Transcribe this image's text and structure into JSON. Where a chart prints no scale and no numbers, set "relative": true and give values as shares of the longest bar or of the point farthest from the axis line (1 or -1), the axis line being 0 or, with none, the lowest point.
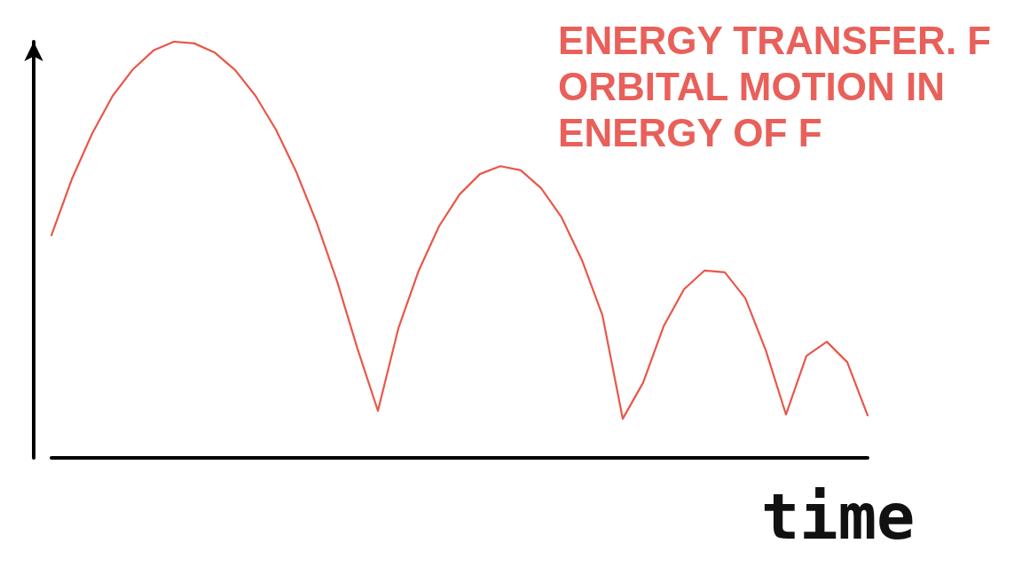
{
  "chart_data": {
    "type": "line",
    "title": "ENERGY TRANSFER. F\nORBITAL MOTION IN\nENERGY OF F",
    "xlabel": "time",
    "relative": true,
    "grid": false,
    "marker": "none",
    "line_style": "solid",
    "categories": [
      null,
      null,
      null,
      null,
      null,
      null,
      null,
      null,
      null,
      null,
      null,
      null,
      null,
      null,
      null,
      null,
      null,
      null,
      null,
      null,
      null,
      null,
      null,
      null,
      null,
      null,
      null,
      null,
      null,
      null,
      null,
      null,
      null,
      null,
      null,
      null,
      null,
      null,
      null,
      null,
      null
    ],
    "series": [
      {
        "color": "#e8574a",
        "values": [
          0.535,
          0.67,
          0.78,
          0.87,
          0.934,
          0.979,
          1,
          0.996,
          0.974,
          0.932,
          0.87,
          0.789,
          0.687,
          0.565,
          0.424,
          0.262,
          0.113,
          0.311,
          0.45,
          0.557,
          0.633,
          0.682,
          0.701,
          0.691,
          0.648,
          0.578,
          0.475,
          0.343,
          0.094,
          0.181,
          0.316,
          0.405,
          0.45,
          0.446,
          0.384,
          0.26,
          0.104,
          0.245,
          0.279,
          0.23,
          0.102
        ]
      }
    ]
  }
}
